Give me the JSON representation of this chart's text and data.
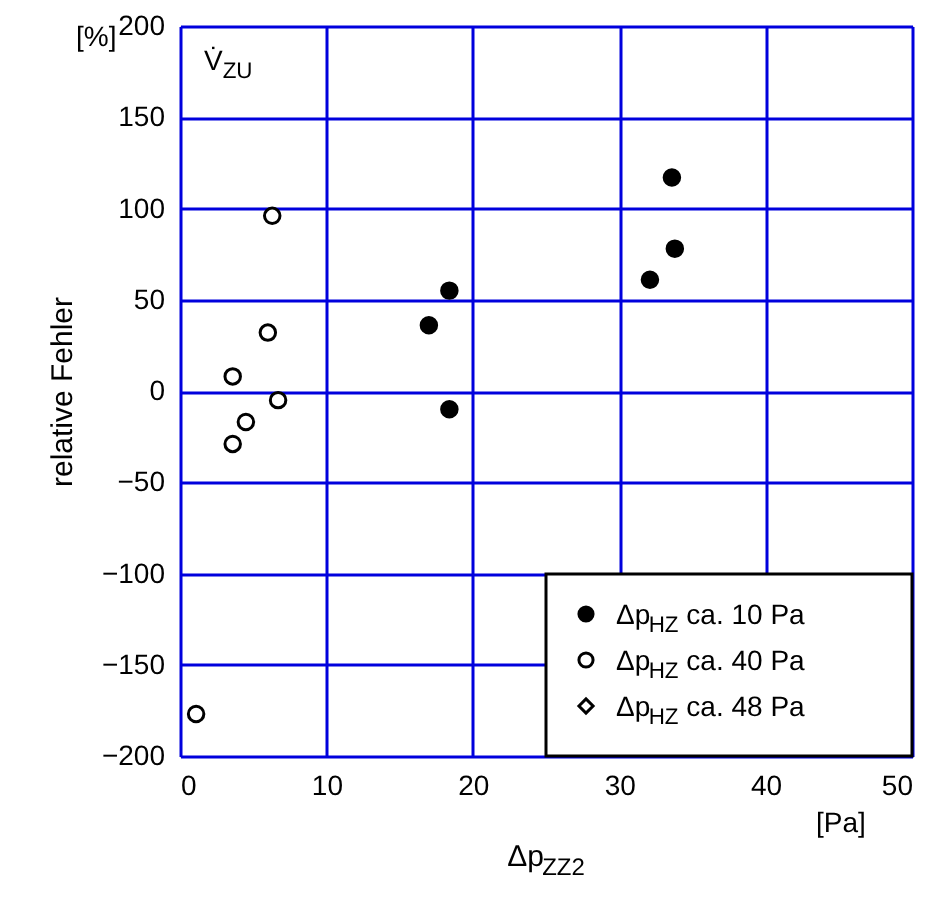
{
  "chart_data": {
    "type": "scatter",
    "xlabel": "Δp$_{ZZ2}$",
    "ylabel": "relative Fehler",
    "annotations": [
      "[%]",
      "[Pa]",
      "V̇$_{ZU}$"
    ],
    "xlim": [
      0,
      50
    ],
    "ylim": [
      -200,
      200
    ],
    "xticks": [
      0,
      10,
      20,
      30,
      40,
      50
    ],
    "yticks": [
      -200,
      -150,
      -100,
      -50,
      0,
      50,
      100,
      150,
      200
    ],
    "grid": true,
    "legend": "bottom right",
    "series": [
      {
        "name": "Δp$_{HZ}$ ca. 10 Pa",
        "color": "#000000",
        "marker": "circle",
        "x": [
          33.6,
          33.8,
          32.1,
          18.4,
          17.0,
          18.4
        ],
        "values": [
          117,
          78,
          61,
          55,
          36,
          -10
        ]
      },
      {
        "name": "Δp$_{HZ}$ ca. 40 Pa",
        "color": "#ffffff",
        "marker": "circle",
        "x": [
          6.3,
          6.0,
          3.6,
          6.7,
          4.5,
          3.6,
          1.1
        ],
        "values": [
          96,
          32,
          8,
          -5,
          -17,
          -29,
          -177
        ]
      },
      {
        "name": "Δp$_{HZ}$ ca. 48 Pa",
        "color": "#ffffff",
        "marker": "diamond"
      }
    ]
  }
}
